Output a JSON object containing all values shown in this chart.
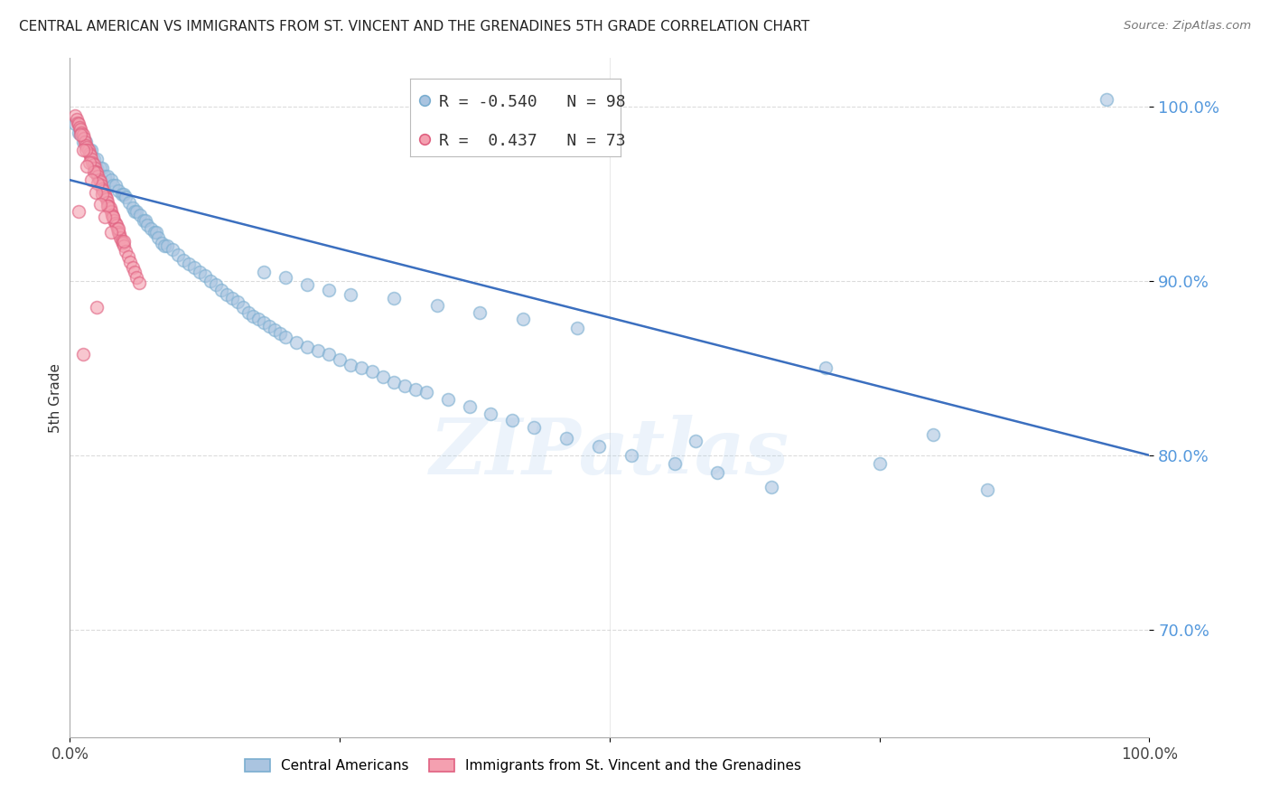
{
  "title": "CENTRAL AMERICAN VS IMMIGRANTS FROM ST. VINCENT AND THE GRENADINES 5TH GRADE CORRELATION CHART",
  "source": "Source: ZipAtlas.com",
  "ylabel": "5th Grade",
  "yticks": [
    0.7,
    0.8,
    0.9,
    1.0
  ],
  "ytick_labels": [
    "70.0%",
    "80.0%",
    "90.0%",
    "100.0%"
  ],
  "xlim": [
    0.0,
    1.0
  ],
  "ylim": [
    0.638,
    1.028
  ],
  "legend_blue_r": "-0.540",
  "legend_blue_n": "98",
  "legend_pink_r": "0.437",
  "legend_pink_n": "73",
  "blue_color": "#aac4e0",
  "blue_edge_color": "#7aaed0",
  "pink_color": "#f4a0b0",
  "pink_edge_color": "#e06080",
  "line_color": "#3b6fbf",
  "watermark": "ZIPatlas",
  "background_color": "#ffffff",
  "grid_color": "#cccccc",
  "blue_x": [
    0.005,
    0.008,
    0.01,
    0.012,
    0.015,
    0.018,
    0.02,
    0.022,
    0.025,
    0.025,
    0.028,
    0.03,
    0.032,
    0.035,
    0.038,
    0.04,
    0.042,
    0.045,
    0.048,
    0.05,
    0.052,
    0.055,
    0.058,
    0.06,
    0.062,
    0.065,
    0.068,
    0.07,
    0.072,
    0.075,
    0.078,
    0.08,
    0.082,
    0.085,
    0.088,
    0.09,
    0.095,
    0.1,
    0.105,
    0.11,
    0.115,
    0.12,
    0.125,
    0.13,
    0.135,
    0.14,
    0.145,
    0.15,
    0.155,
    0.16,
    0.165,
    0.17,
    0.175,
    0.18,
    0.185,
    0.19,
    0.195,
    0.2,
    0.21,
    0.22,
    0.23,
    0.24,
    0.25,
    0.26,
    0.27,
    0.28,
    0.29,
    0.3,
    0.31,
    0.32,
    0.33,
    0.35,
    0.37,
    0.39,
    0.41,
    0.43,
    0.46,
    0.49,
    0.52,
    0.56,
    0.6,
    0.65,
    0.7,
    0.75,
    0.8,
    0.85,
    0.96,
    0.18,
    0.2,
    0.22,
    0.24,
    0.26,
    0.3,
    0.34,
    0.38,
    0.42,
    0.47,
    0.58
  ],
  "blue_y": [
    0.99,
    0.985,
    0.985,
    0.98,
    0.98,
    0.975,
    0.975,
    0.97,
    0.97,
    0.965,
    0.965,
    0.965,
    0.96,
    0.96,
    0.958,
    0.955,
    0.955,
    0.952,
    0.95,
    0.95,
    0.948,
    0.945,
    0.942,
    0.94,
    0.94,
    0.938,
    0.935,
    0.935,
    0.932,
    0.93,
    0.928,
    0.928,
    0.925,
    0.922,
    0.92,
    0.92,
    0.918,
    0.915,
    0.912,
    0.91,
    0.908,
    0.905,
    0.903,
    0.9,
    0.898,
    0.895,
    0.892,
    0.89,
    0.888,
    0.885,
    0.882,
    0.88,
    0.878,
    0.876,
    0.874,
    0.872,
    0.87,
    0.868,
    0.865,
    0.862,
    0.86,
    0.858,
    0.855,
    0.852,
    0.85,
    0.848,
    0.845,
    0.842,
    0.84,
    0.838,
    0.836,
    0.832,
    0.828,
    0.824,
    0.82,
    0.816,
    0.81,
    0.805,
    0.8,
    0.795,
    0.79,
    0.782,
    0.85,
    0.795,
    0.812,
    0.78,
    1.004,
    0.905,
    0.902,
    0.898,
    0.895,
    0.892,
    0.89,
    0.886,
    0.882,
    0.878,
    0.873,
    0.808
  ],
  "pink_x": [
    0.005,
    0.006,
    0.007,
    0.008,
    0.009,
    0.01,
    0.011,
    0.012,
    0.013,
    0.014,
    0.015,
    0.016,
    0.017,
    0.018,
    0.019,
    0.02,
    0.021,
    0.022,
    0.023,
    0.024,
    0.025,
    0.026,
    0.027,
    0.028,
    0.029,
    0.03,
    0.031,
    0.032,
    0.033,
    0.034,
    0.035,
    0.036,
    0.037,
    0.038,
    0.039,
    0.04,
    0.041,
    0.042,
    0.043,
    0.044,
    0.045,
    0.046,
    0.047,
    0.048,
    0.049,
    0.05,
    0.052,
    0.054,
    0.056,
    0.058,
    0.06,
    0.062,
    0.064,
    0.01,
    0.015,
    0.018,
    0.022,
    0.026,
    0.03,
    0.035,
    0.04,
    0.045,
    0.05,
    0.012,
    0.016,
    0.02,
    0.024,
    0.028,
    0.032,
    0.038,
    0.008,
    0.012,
    0.025
  ],
  "pink_y": [
    0.995,
    0.993,
    0.991,
    0.99,
    0.988,
    0.987,
    0.985,
    0.984,
    0.982,
    0.98,
    0.978,
    0.977,
    0.975,
    0.973,
    0.972,
    0.97,
    0.968,
    0.967,
    0.965,
    0.963,
    0.962,
    0.96,
    0.958,
    0.957,
    0.955,
    0.953,
    0.952,
    0.95,
    0.948,
    0.947,
    0.945,
    0.943,
    0.942,
    0.94,
    0.938,
    0.937,
    0.935,
    0.933,
    0.932,
    0.93,
    0.928,
    0.927,
    0.925,
    0.923,
    0.922,
    0.92,
    0.917,
    0.914,
    0.911,
    0.908,
    0.905,
    0.902,
    0.899,
    0.984,
    0.975,
    0.968,
    0.963,
    0.956,
    0.95,
    0.943,
    0.937,
    0.93,
    0.923,
    0.975,
    0.966,
    0.958,
    0.951,
    0.944,
    0.937,
    0.928,
    0.94,
    0.858,
    0.885
  ],
  "trendline_x": [
    0.0,
    1.0
  ],
  "trendline_y_start": 0.958,
  "trendline_y_end": 0.8
}
